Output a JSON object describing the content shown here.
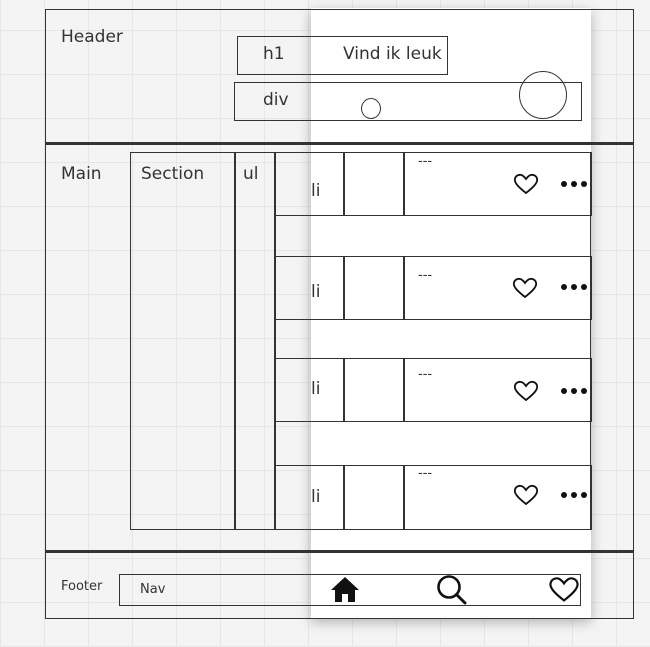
{
  "header": {
    "label": "Header",
    "h1_label": "h1",
    "h1_text": "Vind ik leuk",
    "div_label": "div"
  },
  "main": {
    "label": "Main",
    "section_label": "Section",
    "ul_label": "ul"
  },
  "list": {
    "items": [
      {
        "label": "li",
        "text": "---",
        "icons": [
          "heart-icon",
          "more-dots-icon"
        ]
      },
      {
        "label": "li",
        "text": "---",
        "icons": [
          "heart-icon",
          "more-dots-icon"
        ]
      },
      {
        "label": "li",
        "text": "---",
        "icons": [
          "heart-icon",
          "more-dots-icon"
        ]
      },
      {
        "label": "li",
        "text": "---",
        "icons": [
          "heart-icon",
          "more-dots-icon"
        ]
      }
    ]
  },
  "footer": {
    "label": "Footer",
    "nav_label": "Nav",
    "icons": [
      "home-icon",
      "search-icon",
      "heart-icon"
    ]
  }
}
